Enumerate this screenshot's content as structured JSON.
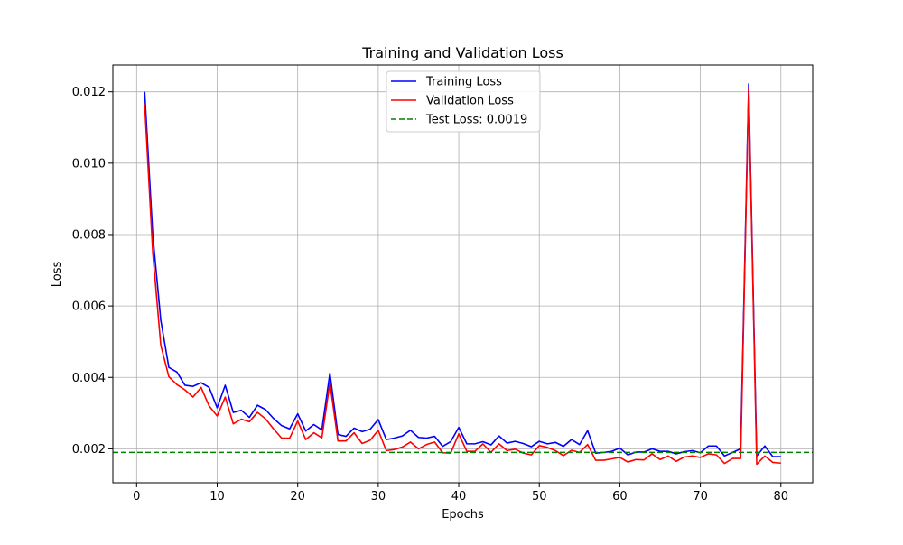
{
  "chart_data": {
    "type": "line",
    "title": "Training and Validation Loss",
    "xlabel": "Epochs",
    "ylabel": "Loss",
    "xlim": [
      -2.95,
      83.95
    ],
    "ylim": [
      0.00105,
      0.01275
    ],
    "xticks": [
      0,
      10,
      20,
      30,
      40,
      50,
      60,
      70,
      80
    ],
    "xtick_labels": [
      "0",
      "10",
      "20",
      "30",
      "40",
      "50",
      "60",
      "70",
      "80"
    ],
    "yticks": [
      0.002,
      0.004,
      0.006,
      0.008,
      0.01,
      0.012
    ],
    "ytick_labels": [
      "0.002",
      "0.004",
      "0.006",
      "0.008",
      "0.010",
      "0.012"
    ],
    "grid": true,
    "legend_position": "top-center",
    "x": [
      1,
      2,
      3,
      4,
      5,
      6,
      7,
      8,
      9,
      10,
      11,
      12,
      13,
      14,
      15,
      16,
      17,
      18,
      19,
      20,
      21,
      22,
      23,
      24,
      25,
      26,
      27,
      28,
      29,
      30,
      31,
      32,
      33,
      34,
      35,
      36,
      37,
      38,
      39,
      40,
      41,
      42,
      43,
      44,
      45,
      46,
      47,
      48,
      49,
      50,
      51,
      52,
      53,
      54,
      55,
      56,
      57,
      58,
      59,
      60,
      61,
      62,
      63,
      64,
      65,
      66,
      67,
      68,
      69,
      70,
      71,
      72,
      73,
      74,
      75,
      76,
      77,
      78,
      79,
      80
    ],
    "series": [
      {
        "name": "Training Loss",
        "color": "#0000ff",
        "style": "solid",
        "values": [
          0.012,
          0.008,
          0.0056,
          0.00428,
          0.00415,
          0.00378,
          0.00375,
          0.00385,
          0.00372,
          0.00315,
          0.00378,
          0.00302,
          0.00308,
          0.00288,
          0.00322,
          0.0031,
          0.00285,
          0.00265,
          0.00256,
          0.00298,
          0.0025,
          0.00268,
          0.00253,
          0.00412,
          0.0024,
          0.00235,
          0.00258,
          0.00248,
          0.00255,
          0.00282,
          0.00226,
          0.0023,
          0.00236,
          0.00252,
          0.00232,
          0.0023,
          0.00235,
          0.00207,
          0.0022,
          0.0026,
          0.00214,
          0.00214,
          0.0022,
          0.00211,
          0.00236,
          0.00216,
          0.00221,
          0.00215,
          0.00206,
          0.00221,
          0.00214,
          0.00218,
          0.00207,
          0.00226,
          0.00212,
          0.00251,
          0.00188,
          0.0019,
          0.00193,
          0.00202,
          0.00183,
          0.00191,
          0.00191,
          0.002,
          0.00193,
          0.00193,
          0.00186,
          0.00192,
          0.00195,
          0.00189,
          0.00208,
          0.00208,
          0.0018,
          0.0019,
          0.002,
          0.01222,
          0.0018,
          0.00208,
          0.00178,
          0.00178
        ]
      },
      {
        "name": "Validation Loss",
        "color": "#ff0000",
        "style": "solid",
        "values": [
          0.01165,
          0.0075,
          0.0049,
          0.00402,
          0.0038,
          0.00365,
          0.00345,
          0.00372,
          0.0032,
          0.00292,
          0.00345,
          0.0027,
          0.00283,
          0.00276,
          0.00302,
          0.00284,
          0.00256,
          0.0023,
          0.0023,
          0.00278,
          0.00226,
          0.00245,
          0.00231,
          0.00385,
          0.00222,
          0.00222,
          0.00245,
          0.00215,
          0.00224,
          0.00252,
          0.00195,
          0.00198,
          0.00205,
          0.00219,
          0.002,
          0.00212,
          0.00219,
          0.00189,
          0.00188,
          0.00242,
          0.00193,
          0.00193,
          0.00214,
          0.0019,
          0.00214,
          0.00195,
          0.00199,
          0.00188,
          0.00183,
          0.00209,
          0.00204,
          0.00195,
          0.00181,
          0.00196,
          0.0019,
          0.00212,
          0.00168,
          0.00168,
          0.00172,
          0.00176,
          0.00163,
          0.0017,
          0.00169,
          0.00186,
          0.0017,
          0.0018,
          0.00165,
          0.00177,
          0.0018,
          0.00176,
          0.00186,
          0.00183,
          0.00159,
          0.00173,
          0.00173,
          0.0121,
          0.00157,
          0.0018,
          0.00162,
          0.0016
        ]
      }
    ],
    "hlines": [
      {
        "name": "Test Loss: 0.0019",
        "value": 0.0019,
        "color": "#008000",
        "style": "dashed"
      }
    ],
    "legend": [
      {
        "label": "Training Loss",
        "color": "#0000ff",
        "style": "solid"
      },
      {
        "label": "Validation Loss",
        "color": "#ff0000",
        "style": "solid"
      },
      {
        "label": "Test Loss: 0.0019",
        "color": "#008000",
        "style": "dashed"
      }
    ]
  }
}
